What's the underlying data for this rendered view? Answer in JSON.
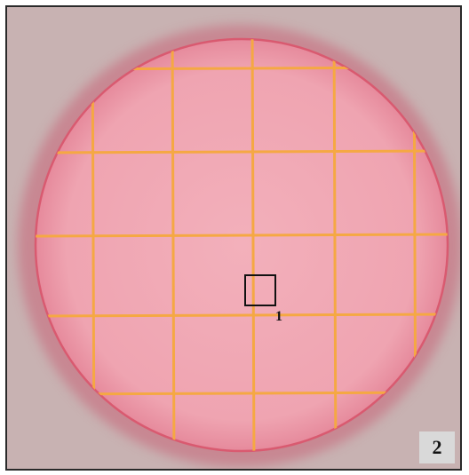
{
  "specimen": {
    "marker_label": "1",
    "corner_label": "2"
  },
  "colors": {
    "background": "#c8b2b2",
    "disk_fill": "#f0aab5",
    "disk_edge": "#d95a70",
    "grid_line": "#f5a843",
    "marker_border": "#111111"
  }
}
